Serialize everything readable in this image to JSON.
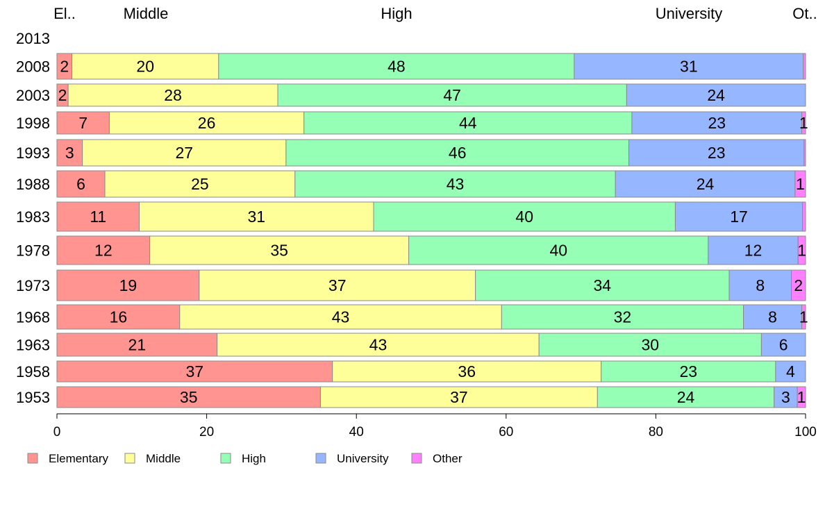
{
  "colors": {
    "Elementary": "#ff9491",
    "Middle": "#ffff99",
    "High": "#96ffb6",
    "University": "#96b6ff",
    "Other": "#ff80ff"
  },
  "chart_data": {
    "type": "bar",
    "orientation": "horizontal",
    "stacked": true,
    "top_labels": [
      "El..",
      "Middle",
      "High",
      "University",
      "Ot.."
    ],
    "categories": [
      "2013",
      "2008",
      "2003",
      "1998",
      "1993",
      "1988",
      "1983",
      "1978",
      "1973",
      "1968",
      "1963",
      "1958",
      "1953"
    ],
    "series": [
      {
        "name": "Elementary",
        "values": [
          null,
          2,
          1.5,
          7,
          3.4,
          6.4,
          11,
          12.4,
          19,
          16.4,
          21.4,
          36.8,
          35.2
        ]
      },
      {
        "name": "Middle",
        "values": [
          null,
          19.6,
          28,
          26,
          27.2,
          25.4,
          31.3,
          34.6,
          36.9,
          43,
          43,
          35.9,
          37
        ]
      },
      {
        "name": "High",
        "values": [
          null,
          47.5,
          46.6,
          43.8,
          45.8,
          42.8,
          40.3,
          40,
          33.9,
          32.3,
          29.7,
          23.3,
          23.6
        ]
      },
      {
        "name": "University",
        "values": [
          null,
          30.6,
          23.9,
          22.7,
          23.4,
          24,
          17,
          12,
          8.3,
          7.8,
          5.9,
          4,
          3.1
        ]
      },
      {
        "name": "Other",
        "values": [
          null,
          0.3,
          0,
          0.5,
          0.2,
          1.4,
          0.4,
          1,
          1.9,
          0.5,
          0,
          0,
          1.1
        ]
      }
    ],
    "xlim": [
      0,
      100
    ],
    "xticks": [
      "0",
      "20",
      "40",
      "60",
      "80",
      "100"
    ],
    "legend": [
      "Elementary",
      "Middle",
      "High",
      "University",
      "Other"
    ],
    "legend_position": "bottom-left",
    "grid": false
  }
}
